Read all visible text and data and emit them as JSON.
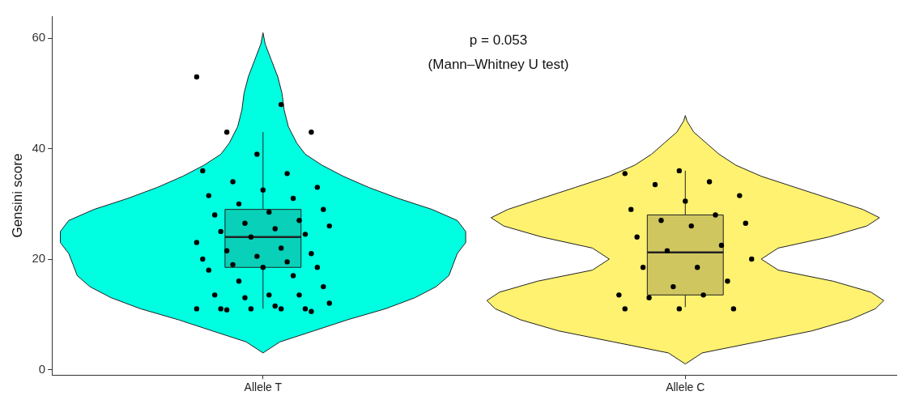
{
  "chart_data": {
    "type": "box",
    "ylabel": "Gensini score",
    "categories": [
      "Allele T",
      "Allele C"
    ],
    "colors": [
      "#00ffe1",
      "#fff270"
    ],
    "boxes": [
      {
        "low": 11,
        "q1": 18.5,
        "median": 24,
        "q3": 29,
        "high": 43
      },
      {
        "low": 11.3,
        "q1": 13.5,
        "median": 21.2,
        "q3": 28,
        "high": 36
      }
    ],
    "series": [
      {
        "type": "scatter",
        "color": "#000000",
        "x": [
          "Allele T",
          "Allele T",
          "Allele T",
          "Allele T",
          "Allele T",
          "Allele T",
          "Allele T",
          "Allele T",
          "Allele T",
          "Allele T",
          "Allele T",
          "Allele T",
          "Allele T",
          "Allele T",
          "Allele T",
          "Allele T",
          "Allele T",
          "Allele T",
          "Allele T",
          "Allele T",
          "Allele T",
          "Allele T",
          "Allele T",
          "Allele T",
          "Allele T",
          "Allele T",
          "Allele T",
          "Allele T",
          "Allele T",
          "Allele T",
          "Allele T",
          "Allele T",
          "Allele T",
          "Allele T",
          "Allele T",
          "Allele T",
          "Allele T",
          "Allele T",
          "Allele T",
          "Allele T",
          "Allele T",
          "Allele T",
          "Allele T",
          "Allele T",
          "Allele T",
          "Allele T",
          "Allele T",
          "Allele T",
          "Allele T",
          "Allele T",
          "Allele C",
          "Allele C",
          "Allele C",
          "Allele C",
          "Allele C",
          "Allele C",
          "Allele C",
          "Allele C",
          "Allele C",
          "Allele C",
          "Allele C",
          "Allele C",
          "Allele C",
          "Allele C",
          "Allele C",
          "Allele C",
          "Allele C",
          "Allele C",
          "Allele C",
          "Allele C",
          "Allele C",
          "Allele C",
          "Allele C",
          "Allele C",
          "Allele C"
        ],
        "values": [
          53,
          48,
          43,
          43,
          39,
          36,
          35.5,
          34,
          33,
          32.5,
          31.5,
          31,
          30,
          29,
          28.5,
          28,
          27,
          26.5,
          26,
          25.5,
          25,
          24.5,
          24,
          23,
          22,
          21.5,
          21,
          20.5,
          20,
          19.5,
          19,
          18.5,
          18.5,
          18,
          17,
          16,
          15,
          13.5,
          13.5,
          13.5,
          13,
          12,
          11.5,
          11,
          11,
          11,
          11,
          11,
          10.8,
          10.5,
          36,
          35.5,
          34,
          33.5,
          31.5,
          30.5,
          29,
          28,
          27,
          26.5,
          26,
          24,
          22.5,
          21.5,
          20,
          18.5,
          18.5,
          16,
          15,
          13.5,
          13.5,
          13,
          11,
          11,
          11
        ]
      }
    ],
    "ylim": [
      -1,
      64
    ],
    "yticks": [
      0,
      20,
      40,
      60
    ],
    "grid": false,
    "legend": false,
    "marker": "circle",
    "annotations": [
      "p = 0.053",
      "(Mann–Whitney U test)"
    ]
  }
}
